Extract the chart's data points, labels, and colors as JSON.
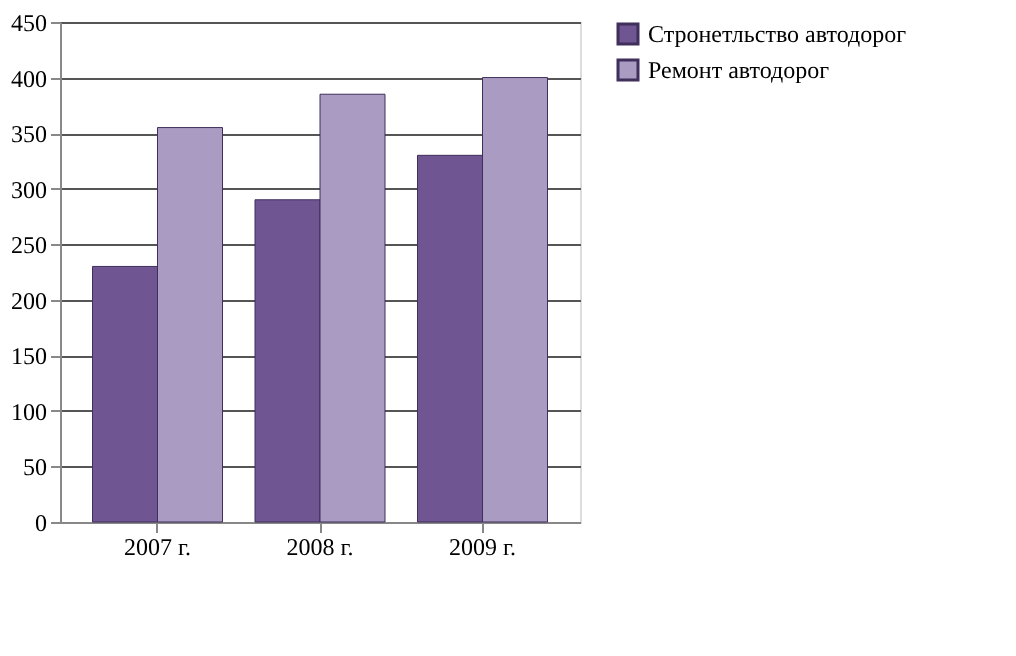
{
  "chart_data": {
    "type": "bar",
    "categories": [
      "2007 г.",
      "2008 г.",
      "2009 г."
    ],
    "series": [
      {
        "name": "Стронетльство автодорог",
        "color": "#6f5592",
        "values": [
          230,
          290,
          330
        ]
      },
      {
        "name": "Ремонт автодорог",
        "color": "#a99bc2",
        "values": [
          355,
          385,
          400
        ]
      }
    ],
    "ylim": [
      0,
      450
    ],
    "yticks": [
      0,
      50,
      100,
      150,
      200,
      250,
      300,
      350,
      400,
      450
    ],
    "grid": "y",
    "legend": "right"
  }
}
